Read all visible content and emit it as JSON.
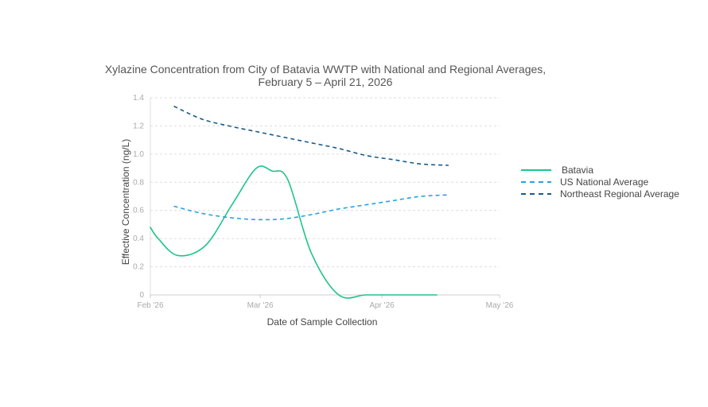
{
  "chart_data": {
    "type": "line",
    "title": "Xylazine Concentration from City of Batavia WWTP with National and Regional Averages,",
    "subtitle": "February 5 – April 21, 2026",
    "xlabel": "Date of Sample Collection",
    "ylabel": "Effective Concentration (ng/L)",
    "xlim": [
      "2026-02-01",
      "2026-05-01"
    ],
    "ylim": [
      0,
      1.4
    ],
    "x_ticks": [
      {
        "date": "2026-02-01",
        "label": "Feb '26"
      },
      {
        "date": "2026-03-01",
        "label": "Mar '26"
      },
      {
        "date": "2026-04-01",
        "label": "Apr '26"
      },
      {
        "date": "2026-05-01",
        "label": "May '26"
      }
    ],
    "y_ticks": [
      {
        "value": 0,
        "label": "0"
      },
      {
        "value": 0.2,
        "label": "0.2"
      },
      {
        "value": 0.4,
        "label": "0.4"
      },
      {
        "value": 0.6,
        "label": "0.6"
      },
      {
        "value": 0.8,
        "label": "0.8"
      },
      {
        "value": 1.0,
        "label": "1.0"
      },
      {
        "value": 1.2,
        "label": "1.2"
      },
      {
        "value": 1.4,
        "label": "1.4"
      }
    ],
    "grid": true,
    "legend_position": "right",
    "series": [
      {
        "name": "Batavia",
        "color": "#1ec48e",
        "dash": "solid",
        "points": [
          {
            "x": "2026-02-01",
            "y": 0.48
          },
          {
            "x": "2026-02-03",
            "y": 0.4
          },
          {
            "x": "2026-02-08",
            "y": 0.28
          },
          {
            "x": "2026-02-15",
            "y": 0.35
          },
          {
            "x": "2026-02-22",
            "y": 0.65
          },
          {
            "x": "2026-02-28",
            "y": 0.9
          },
          {
            "x": "2026-03-04",
            "y": 0.88
          },
          {
            "x": "2026-03-08",
            "y": 0.82
          },
          {
            "x": "2026-03-14",
            "y": 0.3
          },
          {
            "x": "2026-03-21",
            "y": 0.0
          },
          {
            "x": "2026-03-28",
            "y": 0.0
          },
          {
            "x": "2026-04-05",
            "y": 0.0
          },
          {
            "x": "2026-04-15",
            "y": 0.0
          }
        ]
      },
      {
        "name": "US National Average",
        "color": "#29a3e0",
        "dash": "dashed",
        "points": [
          {
            "x": "2026-02-07",
            "y": 0.63
          },
          {
            "x": "2026-02-14",
            "y": 0.58
          },
          {
            "x": "2026-02-21",
            "y": 0.55
          },
          {
            "x": "2026-02-28",
            "y": 0.535
          },
          {
            "x": "2026-03-07",
            "y": 0.54
          },
          {
            "x": "2026-03-14",
            "y": 0.57
          },
          {
            "x": "2026-03-21",
            "y": 0.61
          },
          {
            "x": "2026-03-28",
            "y": 0.64
          },
          {
            "x": "2026-04-04",
            "y": 0.67
          },
          {
            "x": "2026-04-11",
            "y": 0.7
          },
          {
            "x": "2026-04-18",
            "y": 0.71
          }
        ]
      },
      {
        "name": "Northeast Regional Average",
        "color": "#1a5a8a",
        "dash": "dashed",
        "points": [
          {
            "x": "2026-02-07",
            "y": 1.34
          },
          {
            "x": "2026-02-14",
            "y": 1.25
          },
          {
            "x": "2026-02-21",
            "y": 1.2
          },
          {
            "x": "2026-02-28",
            "y": 1.16
          },
          {
            "x": "2026-03-07",
            "y": 1.12
          },
          {
            "x": "2026-03-14",
            "y": 1.08
          },
          {
            "x": "2026-03-21",
            "y": 1.04
          },
          {
            "x": "2026-03-28",
            "y": 0.99
          },
          {
            "x": "2026-04-04",
            "y": 0.96
          },
          {
            "x": "2026-04-11",
            "y": 0.93
          },
          {
            "x": "2026-04-18",
            "y": 0.92
          }
        ]
      }
    ]
  }
}
